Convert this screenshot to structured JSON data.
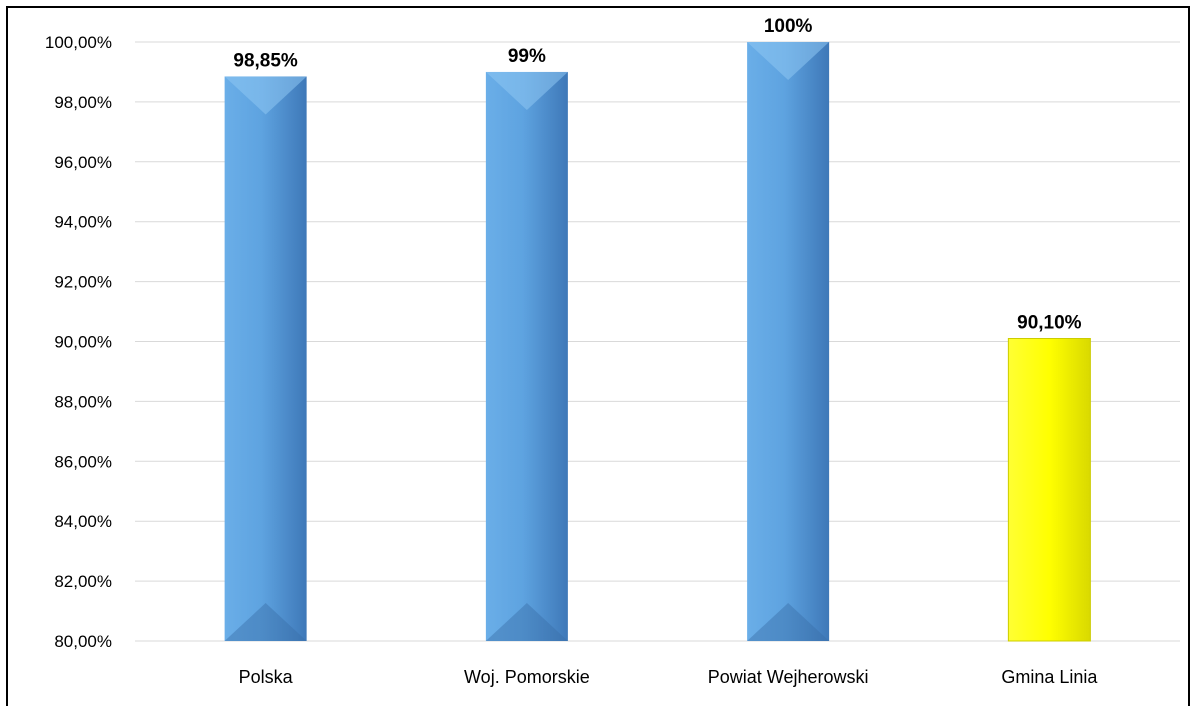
{
  "chart_data": {
    "type": "bar",
    "title": "",
    "xlabel": "",
    "ylabel": "",
    "categories": [
      "Polska",
      "Woj. Pomorskie",
      "Powiat Wejherowski",
      "Gmina Linia"
    ],
    "values": [
      98.85,
      99.0,
      100.0,
      90.1
    ],
    "data_labels": [
      "98,85%",
      "99%",
      "100%",
      "90,10%"
    ],
    "bar_colors": [
      "#5b9bd5",
      "#5b9bd5",
      "#5b9bd5",
      "#ffff00"
    ],
    "ylim": [
      80,
      100
    ],
    "y_ticks": [
      80,
      82,
      84,
      86,
      88,
      90,
      92,
      94,
      96,
      98,
      100
    ],
    "y_tick_labels": [
      "80,00%",
      "82,00%",
      "84,00%",
      "86,00%",
      "88,00%",
      "90,00%",
      "92,00%",
      "94,00%",
      "96,00%",
      "98,00%",
      "100,00%"
    ],
    "grid": true,
    "legend": "none"
  }
}
